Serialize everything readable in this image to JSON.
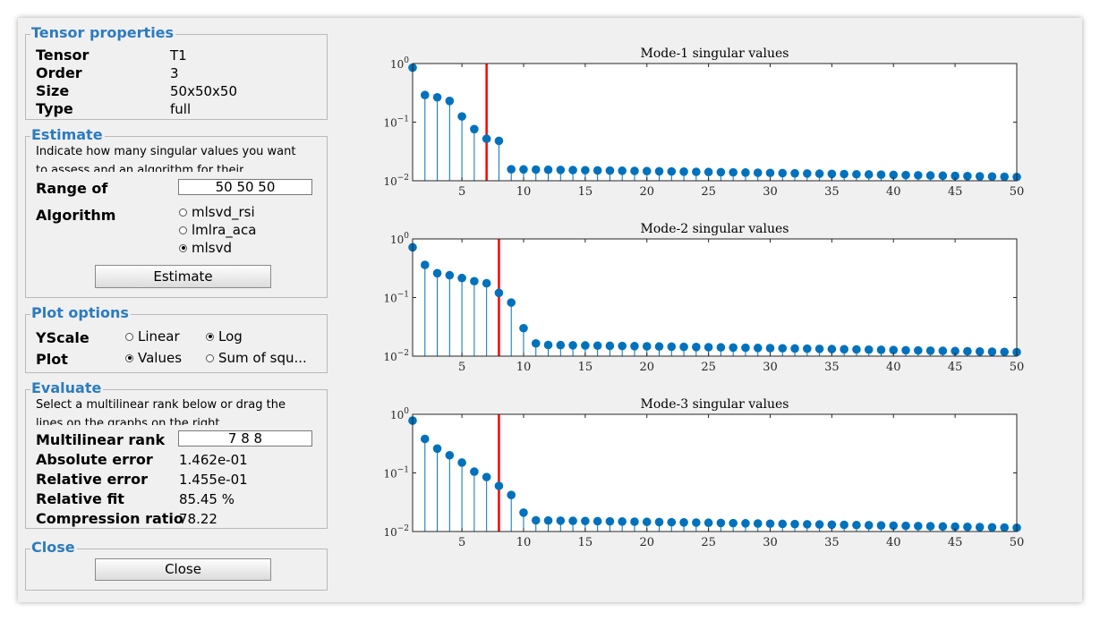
{
  "panels": {
    "tensor_properties": {
      "title": "Tensor properties",
      "rows": [
        {
          "label": "Tensor",
          "value": "T1"
        },
        {
          "label": "Order",
          "value": "3"
        },
        {
          "label": "Size",
          "value": "50x50x50"
        },
        {
          "label": "Type",
          "value": "full"
        }
      ]
    },
    "estimate": {
      "title": "Estimate",
      "description_line1": "Indicate how many singular values you want",
      "description_line2": "to assess and an algorithm for their",
      "range_label": "Range of",
      "range_value": "50 50 50",
      "algorithm_label": "Algorithm",
      "algorithms": [
        {
          "label": "mlsvd_rsi",
          "selected": false
        },
        {
          "label": "lmlra_aca",
          "selected": false
        },
        {
          "label": "mlsvd",
          "selected": true
        }
      ],
      "button_label": "Estimate"
    },
    "plot_options": {
      "title": "Plot options",
      "yscale_label": "YScale",
      "yscale_linear": "Linear",
      "yscale_log": "Log",
      "plot_label": "Plot",
      "plot_values": "Values",
      "plot_sum": "Sum of squ..."
    },
    "evaluate": {
      "title": "Evaluate",
      "description_line1": "Select a multilinear rank below or drag the",
      "description_line2": "lines on the graphs on the right.",
      "rank_label": "Multilinear rank",
      "rank_value": "7 8 8",
      "abs_error_label": "Absolute error",
      "abs_error_value": "1.462e-01",
      "rel_error_label": "Relative error",
      "rel_error_value": "1.455e-01",
      "rel_fit_label": "Relative fit",
      "rel_fit_value": "85.45 %",
      "compression_label": "Compression ratio",
      "compression_value": "78.22"
    },
    "close": {
      "title": "Close",
      "button_label": "Close"
    }
  },
  "colors": {
    "accent": "#2c7bbf",
    "stem": "#0072bd",
    "cutoff_line": "#ff0000"
  },
  "chart_data": [
    {
      "type": "scatter",
      "title": "Mode-1 singular values",
      "yscale": "log",
      "xlim": [
        1,
        50
      ],
      "ylim": [
        0.01,
        1
      ],
      "xticks": [
        5,
        10,
        15,
        20,
        25,
        30,
        35,
        40,
        45,
        50
      ],
      "ytick_labels": [
        {
          "base": "10",
          "exp": "0"
        },
        {
          "base": "10",
          "exp": "−1"
        },
        {
          "base": "10",
          "exp": "−2"
        }
      ],
      "cutoff": 7,
      "values": [
        0.85,
        0.29,
        0.265,
        0.23,
        0.125,
        0.076,
        0.052,
        0.048,
        0.0157,
        0.0156,
        0.0155,
        0.0154,
        0.0153,
        0.0152,
        0.0151,
        0.015,
        0.0149,
        0.0148,
        0.0147,
        0.0146,
        0.0145,
        0.0144,
        0.0143,
        0.0142,
        0.0141,
        0.014,
        0.0139,
        0.0138,
        0.0137,
        0.0136,
        0.0135,
        0.0134,
        0.0133,
        0.0132,
        0.0131,
        0.013,
        0.0129,
        0.0128,
        0.0127,
        0.0126,
        0.0125,
        0.0124,
        0.0123,
        0.0122,
        0.0121,
        0.012,
        0.0119,
        0.0118,
        0.0117,
        0.0116
      ]
    },
    {
      "type": "scatter",
      "title": "Mode-2 singular values",
      "yscale": "log",
      "xlim": [
        1,
        50
      ],
      "ylim": [
        0.01,
        1
      ],
      "xticks": [
        5,
        10,
        15,
        20,
        25,
        30,
        35,
        40,
        45,
        50
      ],
      "ytick_labels": [
        {
          "base": "10",
          "exp": "0"
        },
        {
          "base": "10",
          "exp": "−1"
        },
        {
          "base": "10",
          "exp": "−2"
        }
      ],
      "cutoff": 8,
      "values": [
        0.72,
        0.36,
        0.26,
        0.24,
        0.215,
        0.19,
        0.175,
        0.12,
        0.082,
        0.03,
        0.0165,
        0.0155,
        0.0154,
        0.0153,
        0.0152,
        0.0151,
        0.015,
        0.0149,
        0.0148,
        0.0147,
        0.0146,
        0.0145,
        0.0144,
        0.0143,
        0.0142,
        0.0141,
        0.014,
        0.0139,
        0.0138,
        0.0137,
        0.0136,
        0.0135,
        0.0134,
        0.0133,
        0.0132,
        0.0131,
        0.013,
        0.0129,
        0.0128,
        0.0127,
        0.0126,
        0.0125,
        0.0124,
        0.0123,
        0.0122,
        0.0121,
        0.012,
        0.0119,
        0.0118,
        0.0117
      ]
    },
    {
      "type": "scatter",
      "title": "Mode-3 singular values",
      "yscale": "log",
      "xlim": [
        1,
        50
      ],
      "ylim": [
        0.01,
        1
      ],
      "xticks": [
        5,
        10,
        15,
        20,
        25,
        30,
        35,
        40,
        45,
        50
      ],
      "ytick_labels": [
        {
          "base": "10",
          "exp": "0"
        },
        {
          "base": "10",
          "exp": "−1"
        },
        {
          "base": "10",
          "exp": "−2"
        }
      ],
      "cutoff": 8,
      "values": [
        0.78,
        0.38,
        0.26,
        0.2,
        0.15,
        0.105,
        0.085,
        0.06,
        0.042,
        0.021,
        0.0155,
        0.0154,
        0.0153,
        0.0152,
        0.0151,
        0.015,
        0.0149,
        0.0148,
        0.0147,
        0.0146,
        0.0145,
        0.0144,
        0.0143,
        0.0142,
        0.0141,
        0.014,
        0.0139,
        0.0138,
        0.0137,
        0.0136,
        0.0135,
        0.0134,
        0.0133,
        0.0132,
        0.0131,
        0.013,
        0.0129,
        0.0128,
        0.0127,
        0.0126,
        0.0125,
        0.0124,
        0.0123,
        0.0122,
        0.0121,
        0.012,
        0.0119,
        0.0118,
        0.0117,
        0.0116
      ]
    }
  ]
}
